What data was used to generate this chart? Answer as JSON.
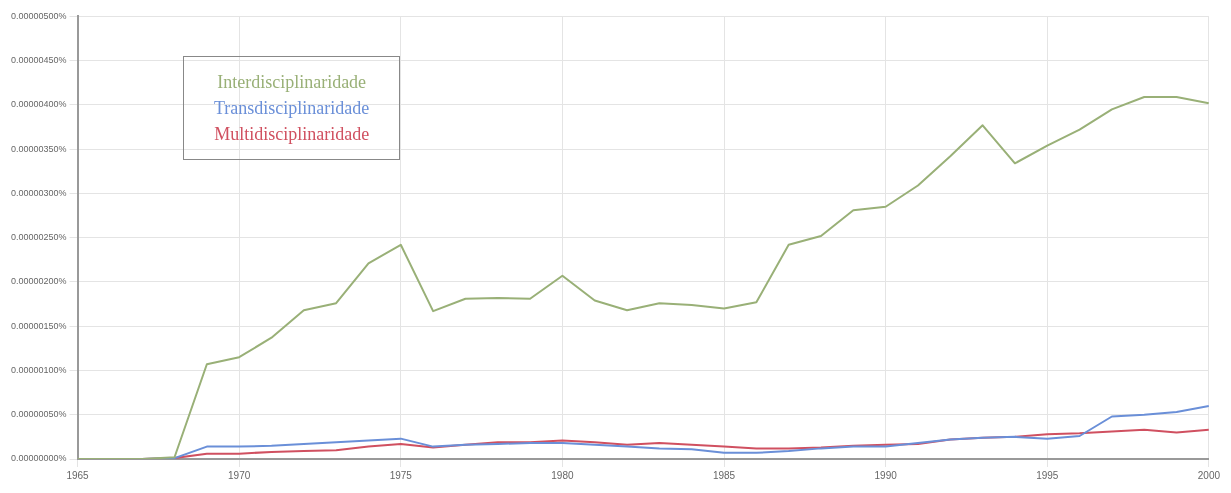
{
  "chart_data": {
    "type": "line",
    "x": [
      1965,
      1966,
      1967,
      1968,
      1969,
      1970,
      1971,
      1972,
      1973,
      1974,
      1975,
      1976,
      1977,
      1978,
      1979,
      1980,
      1981,
      1982,
      1983,
      1984,
      1985,
      1986,
      1987,
      1988,
      1989,
      1990,
      1991,
      1992,
      1993,
      1994,
      1995,
      1996,
      1997,
      1998,
      1999,
      2000
    ],
    "series": [
      {
        "name": "Interdisciplinaridade",
        "color": "#99b077",
        "values": [
          0,
          0,
          0,
          2e-08,
          1.07e-06,
          1.15e-06,
          1.37e-06,
          1.68e-06,
          1.76e-06,
          2.21e-06,
          2.42e-06,
          1.67e-06,
          1.81e-06,
          1.82e-06,
          1.81e-06,
          2.07e-06,
          1.79e-06,
          1.68e-06,
          1.76e-06,
          1.74e-06,
          1.7e-06,
          1.77e-06,
          2.42e-06,
          2.52e-06,
          2.81e-06,
          2.85e-06,
          3.09e-06,
          3.42e-06,
          3.77e-06,
          3.34e-06,
          3.54e-06,
          3.72e-06,
          3.95e-06,
          4.09e-06,
          4.09e-06,
          4.02e-06
        ]
      },
      {
        "name": "Transdisciplinaridade",
        "color": "#6a8fd8",
        "values": [
          null,
          null,
          0,
          1e-08,
          1.4e-07,
          1.4e-07,
          1.5e-07,
          1.7e-07,
          1.9e-07,
          2.1e-07,
          2.3e-07,
          1.4e-07,
          1.6e-07,
          1.7e-07,
          1.8e-07,
          1.8e-07,
          1.6e-07,
          1.4e-07,
          1.2e-07,
          1.1e-07,
          7e-08,
          7e-08,
          9e-08,
          1.2e-07,
          1.4e-07,
          1.4e-07,
          1.8e-07,
          2.2e-07,
          2.4e-07,
          2.5e-07,
          2.3e-07,
          2.6e-07,
          4.8e-07,
          5e-07,
          5.3e-07,
          6e-07
        ]
      },
      {
        "name": "Multidisciplinaridade",
        "color": "#d05060",
        "values": [
          null,
          null,
          0,
          1e-08,
          6e-08,
          6e-08,
          8e-08,
          9e-08,
          1e-07,
          1.4e-07,
          1.7e-07,
          1.3e-07,
          1.6e-07,
          1.9e-07,
          1.9e-07,
          2.1e-07,
          1.9e-07,
          1.6e-07,
          1.8e-07,
          1.6e-07,
          1.4e-07,
          1.2e-07,
          1.2e-07,
          1.3e-07,
          1.5e-07,
          1.6e-07,
          1.7e-07,
          2.2e-07,
          2.4e-07,
          2.5e-07,
          2.8e-07,
          2.9e-07,
          3.1e-07,
          3.3e-07,
          3e-07,
          3.3e-07
        ]
      }
    ],
    "xlim": [
      1965,
      2000
    ],
    "xticks": [
      1965,
      1970,
      1975,
      1980,
      1985,
      1990,
      1995,
      2000
    ],
    "ylim": [
      0,
      5e-06
    ],
    "yticks": [
      {
        "value": 0,
        "label": "0.00000000%"
      },
      {
        "value": 5e-07,
        "label": "0.00000050%"
      },
      {
        "value": 1e-06,
        "label": "0.00000100%"
      },
      {
        "value": 1.5e-06,
        "label": "0.00000150%"
      },
      {
        "value": 2e-06,
        "label": "0.00000200%"
      },
      {
        "value": 2.5e-06,
        "label": "0.00000250%"
      },
      {
        "value": 3e-06,
        "label": "0.00000300%"
      },
      {
        "value": 3.5e-06,
        "label": "0.00000350%"
      },
      {
        "value": 4e-06,
        "label": "0.00000400%"
      },
      {
        "value": 4.5e-06,
        "label": "0.00000450%"
      },
      {
        "value": 5e-06,
        "label": "0.00000500%"
      }
    ],
    "grid": true,
    "legend": "top left",
    "marker": "none",
    "line_style": "solid"
  }
}
